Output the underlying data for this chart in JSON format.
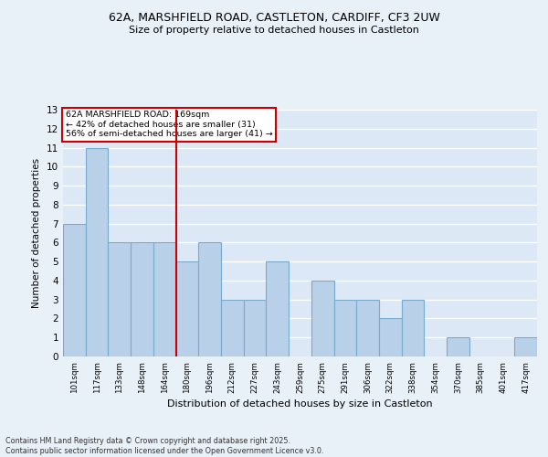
{
  "title1": "62A, MARSHFIELD ROAD, CASTLETON, CARDIFF, CF3 2UW",
  "title2": "Size of property relative to detached houses in Castleton",
  "xlabel": "Distribution of detached houses by size in Castleton",
  "ylabel": "Number of detached properties",
  "footer1": "Contains HM Land Registry data © Crown copyright and database right 2025.",
  "footer2": "Contains public sector information licensed under the Open Government Licence v3.0.",
  "annotation_line1": "62A MARSHFIELD ROAD: 169sqm",
  "annotation_line2": "← 42% of detached houses are smaller (31)",
  "annotation_line3": "56% of semi-detached houses are larger (41) →",
  "bar_labels": [
    "101sqm",
    "117sqm",
    "133sqm",
    "148sqm",
    "164sqm",
    "180sqm",
    "196sqm",
    "212sqm",
    "227sqm",
    "243sqm",
    "259sqm",
    "275sqm",
    "291sqm",
    "306sqm",
    "322sqm",
    "338sqm",
    "354sqm",
    "370sqm",
    "385sqm",
    "401sqm",
    "417sqm"
  ],
  "bar_values": [
    7,
    11,
    6,
    6,
    6,
    5,
    6,
    3,
    3,
    5,
    0,
    4,
    3,
    3,
    2,
    3,
    0,
    1,
    0,
    0,
    1
  ],
  "bar_color": "#b8d0e8",
  "bar_edge_color": "#7aaace",
  "vline_x": 4.5,
  "vline_color": "#cc0000",
  "ylim": [
    0,
    13
  ],
  "yticks": [
    0,
    1,
    2,
    3,
    4,
    5,
    6,
    7,
    8,
    9,
    10,
    11,
    12,
    13
  ],
  "bg_color": "#dce8f5",
  "fig_bg_color": "#e8f0f8",
  "grid_color": "#ffffff",
  "annotation_box_color": "#ffffff",
  "annotation_box_edge": "#cc0000"
}
